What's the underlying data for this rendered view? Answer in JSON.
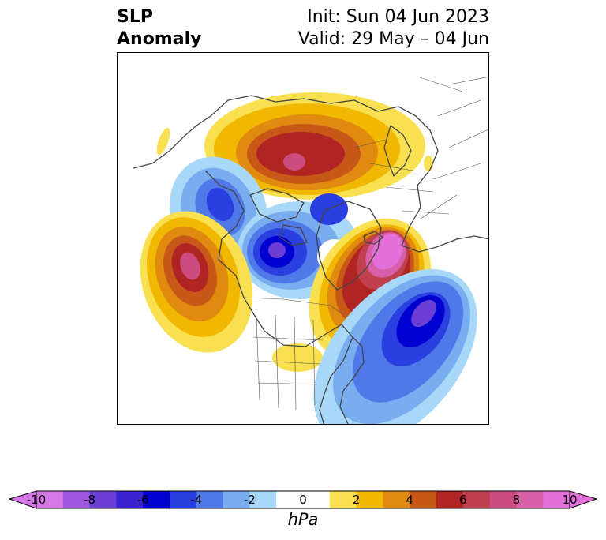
{
  "title": {
    "line1": "SLP",
    "line2": "Anomaly"
  },
  "init": "Init: Sun 04 Jun 2023",
  "valid": "Valid: 29 May – 04 Jun",
  "colorbar": {
    "unit": "hPa",
    "ticks": [
      "-10",
      "-8",
      "-6",
      "-4",
      "-2",
      "0",
      "2",
      "4",
      "6",
      "8",
      "10"
    ],
    "colors": [
      "#d478e8",
      "#9e55e0",
      "#6b3fd6",
      "#3a22d0",
      "#0000d0",
      "#2a3fe0",
      "#4f78e8",
      "#78aef0",
      "#a8d8f8",
      "#ffffff",
      "#ffffff",
      "#f8e050",
      "#f0b800",
      "#e08a10",
      "#c85818",
      "#b02424",
      "#c04050",
      "#cc4c80",
      "#d860a8",
      "#e270d8"
    ],
    "min": -10,
    "max": 10,
    "extend": "both"
  },
  "map": {
    "projection": "north polar stereographic",
    "field": "sea level pressure anomaly",
    "features": [
      "coastlines",
      "country borders",
      "US state borders"
    ]
  }
}
